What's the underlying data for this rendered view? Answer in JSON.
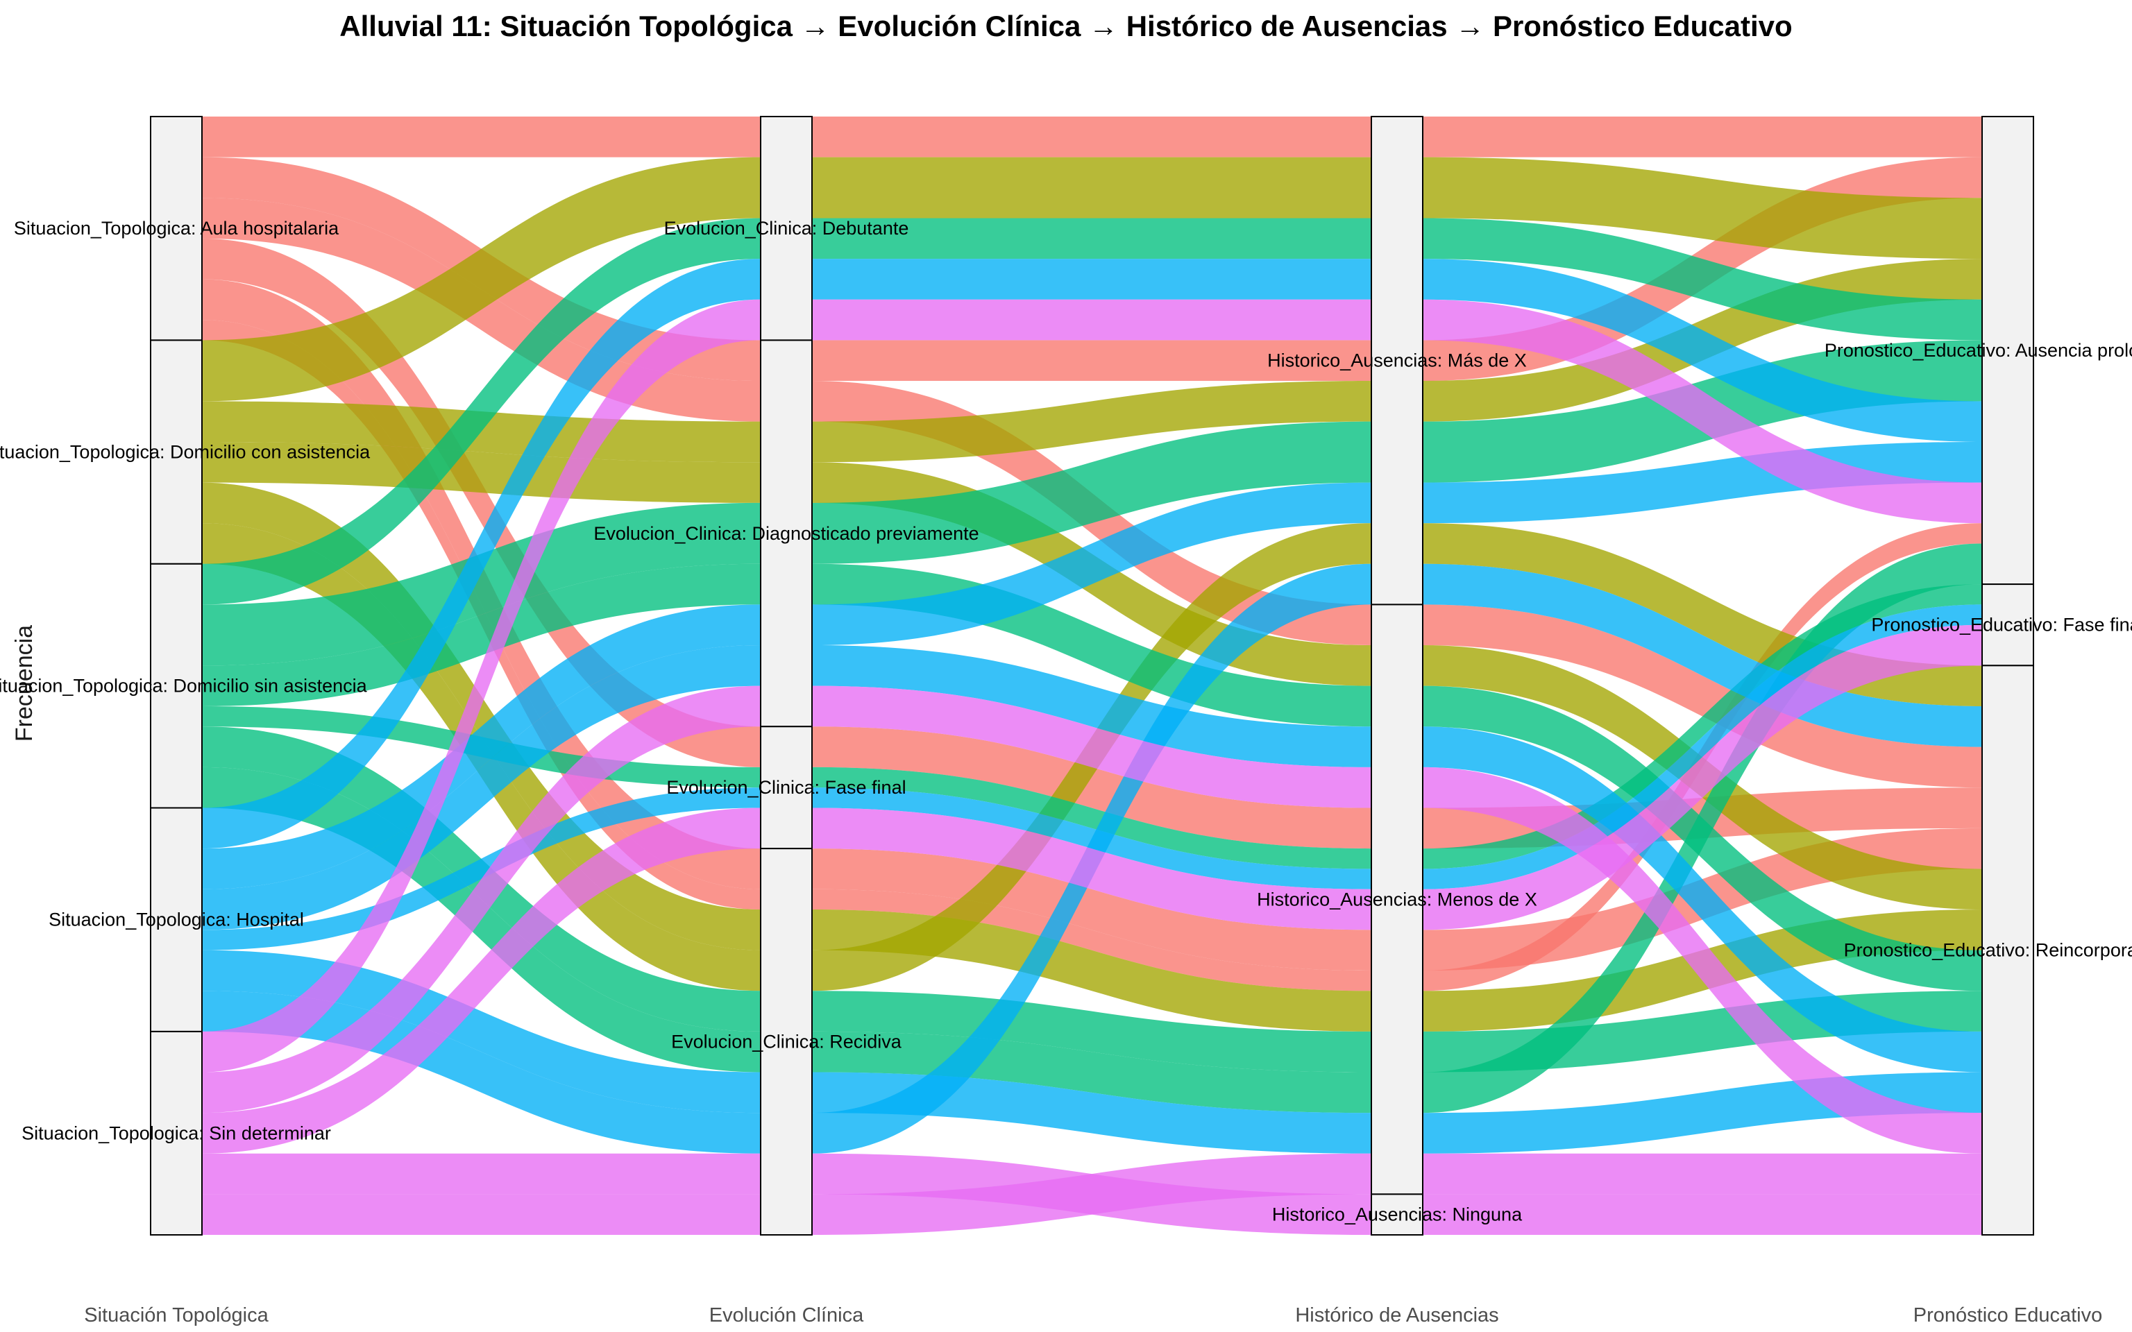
{
  "chart_data": {
    "type": "alluvial",
    "title": "Alluvial 11: Situación Topológica → Evolución Clínica → Histórico de Ausencias → Pronóstico Educativo",
    "ylabel": "Frecuencia",
    "axes": [
      {
        "name": "Situación Topológica",
        "variable": "Situacion_Topologica",
        "strata": [
          "Aula hospitalaria",
          "Domicilio con asistencia",
          "Domicilio sin asistencia",
          "Hospital",
          "Sin determinar"
        ]
      },
      {
        "name": "Evolución Clínica",
        "variable": "Evolucion_Clinica",
        "strata": [
          "Debutante",
          "Diagnosticado previamente",
          "Fase final",
          "Recidiva"
        ]
      },
      {
        "name": "Histórico de Ausencias",
        "variable": "Historico_Ausencias",
        "strata": [
          "Más de X",
          "Menos de X",
          "Ninguna"
        ]
      },
      {
        "name": "Pronóstico Educativo",
        "variable": "Pronostico_Educativo",
        "strata": [
          "Ausencia prolongada",
          "Fase final",
          "Reincorporación"
        ]
      }
    ],
    "stratum_labels": [
      [
        "Situacion_Topologica: Aula hospitalaria",
        "Situacion_Topologica: Domicilio con asistencia",
        "Situacion_Topologica: Domicilio sin asistencia",
        "Situacion_Topologica: Hospital",
        "Situacion_Topologica: Sin determinar"
      ],
      [
        "Evolucion_Clinica: Debutante",
        "Evolucion_Clinica: Diagnosticado previamente",
        "Evolucion_Clinica: Fase final",
        "Evolucion_Clinica: Recidiva"
      ],
      [
        "Historico_Ausencias: Más de X",
        "Historico_Ausencias: Menos de X",
        "Historico_Ausencias: Ninguna"
      ],
      [
        "Pronostico_Educativo: Ausencia prolongada",
        "Pronostico_Educativo: Fase final",
        "Pronostico_Educativo: Reincorporación"
      ]
    ],
    "fill_by": "Situacion_Topologica",
    "colors": {
      "Aula hospitalaria": "#F8766D",
      "Domicilio con asistencia": "#A3A500",
      "Domicilio sin asistencia": "#00BF7D",
      "Hospital": "#00B0F6",
      "Sin determinar": "#E76BF3"
    },
    "flows": [
      {
        "path": [
          0,
          0,
          0,
          0
        ],
        "value": 2
      },
      {
        "path": [
          0,
          1,
          0,
          0
        ],
        "value": 2
      },
      {
        "path": [
          0,
          1,
          1,
          2
        ],
        "value": 2
      },
      {
        "path": [
          0,
          2,
          1,
          2
        ],
        "value": 2
      },
      {
        "path": [
          0,
          3,
          1,
          2
        ],
        "value": 2
      },
      {
        "path": [
          0,
          3,
          1,
          0
        ],
        "value": 1
      },
      {
        "path": [
          1,
          0,
          0,
          0
        ],
        "value": 3
      },
      {
        "path": [
          1,
          1,
          0,
          0
        ],
        "value": 2
      },
      {
        "path": [
          1,
          1,
          1,
          2
        ],
        "value": 2
      },
      {
        "path": [
          1,
          3,
          1,
          2
        ],
        "value": 2
      },
      {
        "path": [
          1,
          3,
          0,
          2
        ],
        "value": 2
      },
      {
        "path": [
          2,
          0,
          0,
          0
        ],
        "value": 2
      },
      {
        "path": [
          2,
          1,
          0,
          0
        ],
        "value": 3
      },
      {
        "path": [
          2,
          1,
          1,
          2
        ],
        "value": 2
      },
      {
        "path": [
          2,
          2,
          1,
          1
        ],
        "value": 1
      },
      {
        "path": [
          2,
          3,
          1,
          2
        ],
        "value": 2
      },
      {
        "path": [
          2,
          3,
          1,
          0
        ],
        "value": 2
      },
      {
        "path": [
          3,
          0,
          0,
          0
        ],
        "value": 2
      },
      {
        "path": [
          3,
          1,
          0,
          0
        ],
        "value": 2
      },
      {
        "path": [
          3,
          1,
          1,
          2
        ],
        "value": 2
      },
      {
        "path": [
          3,
          2,
          1,
          1
        ],
        "value": 1
      },
      {
        "path": [
          3,
          3,
          1,
          2
        ],
        "value": 2
      },
      {
        "path": [
          3,
          3,
          0,
          2
        ],
        "value": 2
      },
      {
        "path": [
          4,
          0,
          0,
          0
        ],
        "value": 2
      },
      {
        "path": [
          4,
          1,
          1,
          2
        ],
        "value": 2
      },
      {
        "path": [
          4,
          2,
          1,
          1
        ],
        "value": 2
      },
      {
        "path": [
          4,
          3,
          2,
          2
        ],
        "value": 2
      },
      {
        "path": [
          4,
          3,
          1,
          2
        ],
        "value": 2
      }
    ],
    "legend": "none",
    "grid": false
  }
}
